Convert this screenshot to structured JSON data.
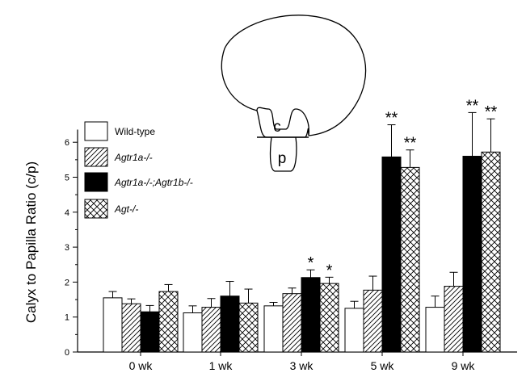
{
  "chart_data": {
    "type": "bar",
    "ylabel": "Calyx to Papilla Ratio (c/p)",
    "ylim": [
      0,
      6.5
    ],
    "yticks": [
      0,
      1,
      2,
      3,
      4,
      5,
      6
    ],
    "categories": [
      "0 wk",
      "1 wk",
      "3 wk",
      "5 wk",
      "9 wk"
    ],
    "legend_position": "top-left",
    "grid": false,
    "series": [
      {
        "name": "Wild-type",
        "pattern": "white",
        "italic": false,
        "values": [
          1.55,
          1.12,
          1.32,
          1.25,
          1.28
        ],
        "errors": [
          0.18,
          0.2,
          0.1,
          0.2,
          0.32
        ],
        "significance": [
          "",
          "",
          "",
          "",
          ""
        ]
      },
      {
        "name": "Agtr1a-/-",
        "pattern": "diagonal-hatch",
        "italic": true,
        "values": [
          1.38,
          1.28,
          1.67,
          1.77,
          1.88
        ],
        "errors": [
          0.14,
          0.25,
          0.16,
          0.4,
          0.4
        ],
        "significance": [
          "",
          "",
          "",
          "",
          ""
        ]
      },
      {
        "name": "Agtr1a-/-;Agtr1b-/-",
        "pattern": "black",
        "italic": true,
        "values": [
          1.15,
          1.6,
          2.13,
          5.58,
          5.6
        ],
        "errors": [
          0.18,
          0.42,
          0.22,
          0.92,
          1.25
        ],
        "significance": [
          "",
          "",
          "*",
          "**",
          "**"
        ]
      },
      {
        "name": "Agt-/-",
        "pattern": "crosshatch",
        "italic": true,
        "values": [
          1.73,
          1.4,
          1.96,
          5.28,
          5.72
        ],
        "errors": [
          0.2,
          0.4,
          0.18,
          0.5,
          0.95
        ],
        "significance": [
          "",
          "",
          "*",
          "**",
          "**"
        ]
      }
    ],
    "diagram": {
      "upper_label": "c",
      "lower_label": "p"
    }
  },
  "colors": {
    "ink": "#000000",
    "paper": "#ffffff"
  }
}
